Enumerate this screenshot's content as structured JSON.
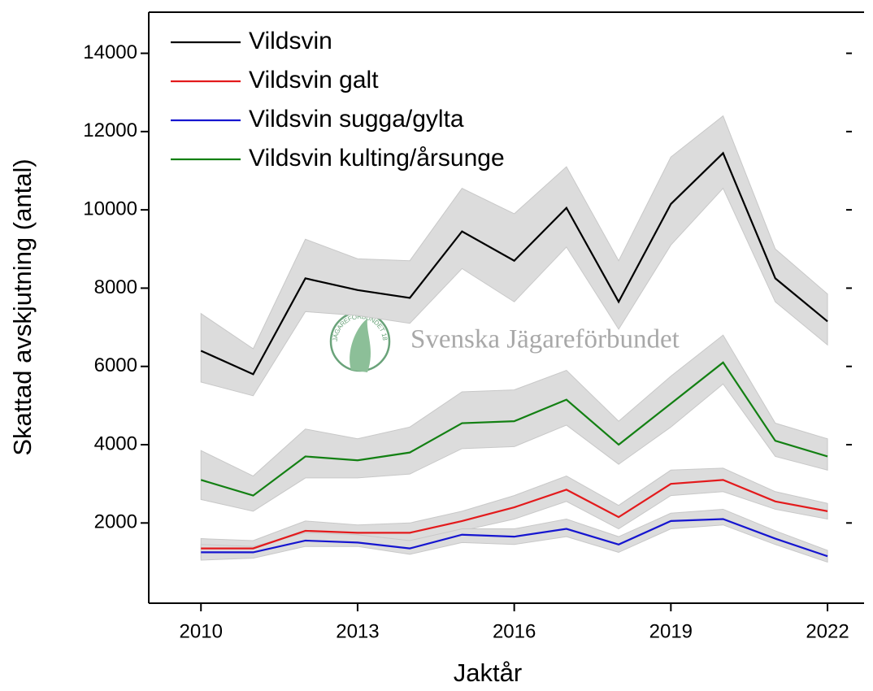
{
  "chart_data": {
    "type": "line",
    "y_label": "Skattad avskjutning (antal)",
    "x_label": "Jaktår",
    "watermark": "Svenska Jägareförbundet",
    "logo_text": "JÄGAREFÖRBUNDET 1830",
    "x": [
      2010,
      2011,
      2012,
      2013,
      2014,
      2015,
      2016,
      2017,
      2018,
      2019,
      2020,
      2021,
      2022
    ],
    "xlim": [
      2009,
      2022.7
    ],
    "xticks": [
      2010,
      2013,
      2016,
      2019,
      2022
    ],
    "ylim": [
      -50,
      15050
    ],
    "yticks": [
      2000,
      4000,
      6000,
      8000,
      10000,
      12000,
      14000
    ],
    "band_color": "#dcdcdc",
    "series": [
      {
        "name": "Vildsvin",
        "color": "#000000",
        "values": [
          6400,
          5800,
          8250,
          7950,
          7750,
          9450,
          8700,
          10050,
          7650,
          10150,
          11450,
          8250,
          7150
        ],
        "upper": [
          7350,
          6450,
          9250,
          8750,
          8700,
          10550,
          9900,
          11100,
          8700,
          11350,
          12400,
          9000,
          7850
        ],
        "lower": [
          5600,
          5250,
          7400,
          7300,
          7100,
          8500,
          7650,
          9050,
          6950,
          9100,
          10550,
          7650,
          6550
        ]
      },
      {
        "name": "Vildsvin galt",
        "color": "#e31a1c",
        "values": [
          1350,
          1350,
          1800,
          1750,
          1750,
          2050,
          2400,
          2850,
          2150,
          3000,
          3100,
          2550,
          2300
        ],
        "upper": [
          1600,
          1550,
          2050,
          1950,
          2000,
          2300,
          2700,
          3200,
          2450,
          3350,
          3400,
          2800,
          2500
        ],
        "lower": [
          1100,
          1150,
          1550,
          1550,
          1500,
          1800,
          2100,
          2550,
          1850,
          2700,
          2800,
          2350,
          2100
        ]
      },
      {
        "name": "Vildsvin sugga/gylta",
        "color": "#1515d0",
        "values": [
          1250,
          1250,
          1550,
          1500,
          1350,
          1700,
          1650,
          1850,
          1450,
          2050,
          2100,
          1600,
          1150
        ],
        "upper": [
          1450,
          1400,
          1750,
          1700,
          1550,
          1850,
          1850,
          2100,
          1650,
          2250,
          2350,
          1800,
          1300
        ],
        "lower": [
          1050,
          1100,
          1400,
          1400,
          1200,
          1500,
          1450,
          1650,
          1250,
          1850,
          1950,
          1450,
          1000
        ]
      },
      {
        "name": "Vildsvin kulting/årsunge",
        "color": "#138013",
        "values": [
          3100,
          2700,
          3700,
          3600,
          3800,
          4550,
          4600,
          5150,
          4000,
          5050,
          6100,
          4100,
          3700
        ],
        "upper": [
          3850,
          3200,
          4400,
          4150,
          4450,
          5350,
          5400,
          5900,
          4600,
          5750,
          6800,
          4550,
          4150
        ],
        "lower": [
          2600,
          2300,
          3150,
          3150,
          3250,
          3900,
          3950,
          4500,
          3500,
          4450,
          5550,
          3700,
          3350
        ]
      }
    ]
  }
}
